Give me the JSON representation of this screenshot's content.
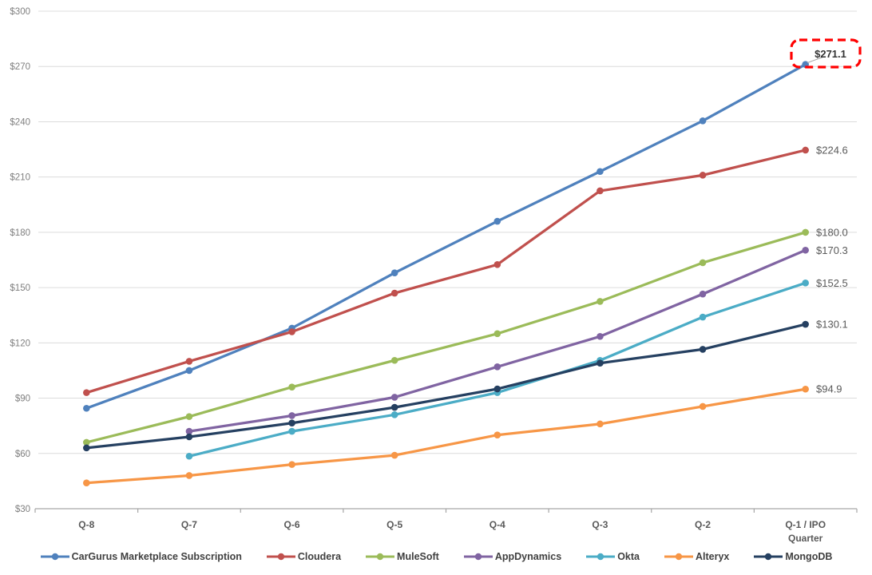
{
  "chart_data": {
    "type": "line",
    "title": "",
    "xlabel": "",
    "ylabel": "",
    "categories": [
      "Q-8",
      "Q-7",
      "Q-6",
      "Q-5",
      "Q-4",
      "Q-3",
      "Q-2",
      "Q-1 / IPO\nQuarter"
    ],
    "y_axis": {
      "min": 30,
      "max": 300,
      "step": 30,
      "tick_labels": [
        "$30",
        "$60",
        "$90",
        "$120",
        "$150",
        "$180",
        "$210",
        "$240",
        "$270",
        "$300"
      ]
    },
    "grid": "horizontal",
    "legend_position": "bottom",
    "series": [
      {
        "name": "CarGurus Marketplace Subscription",
        "color": "#4F81BD",
        "values": [
          84.5,
          105.0,
          128.0,
          158.0,
          186.0,
          213.0,
          240.5,
          271.1
        ],
        "end_label": "$271.1",
        "highlighted": true
      },
      {
        "name": "Cloudera",
        "color": "#C0504D",
        "values": [
          93.0,
          110.0,
          126.0,
          147.0,
          162.5,
          202.5,
          211.0,
          224.6
        ],
        "end_label": "$224.6",
        "highlighted": false
      },
      {
        "name": "MuleSoft",
        "color": "#9BBB59",
        "values": [
          66.0,
          80.0,
          96.0,
          110.5,
          125.0,
          142.5,
          163.5,
          180.0
        ],
        "end_label": "$180.0",
        "highlighted": false
      },
      {
        "name": "AppDynamics",
        "color": "#8064A2",
        "values": [
          null,
          72.0,
          80.5,
          90.5,
          107.0,
          123.5,
          146.5,
          170.3
        ],
        "end_label": "$170.3",
        "highlighted": false
      },
      {
        "name": "Okta",
        "color": "#4BACC6",
        "values": [
          null,
          58.5,
          72.0,
          81.0,
          93.0,
          110.5,
          134.0,
          152.5
        ],
        "end_label": "$152.5",
        "highlighted": false
      },
      {
        "name": "Alteryx",
        "color": "#F79646",
        "values": [
          44.0,
          48.0,
          54.0,
          59.0,
          70.0,
          76.0,
          85.5,
          94.9
        ],
        "end_label": "$94.9",
        "highlighted": false
      },
      {
        "name": "MongoDB",
        "color": "#254061",
        "values": [
          63.0,
          69.0,
          76.5,
          85.0,
          95.0,
          109.0,
          116.5,
          130.1
        ],
        "end_label": "$130.1",
        "highlighted": false
      }
    ],
    "annotation": {
      "text": "$271.1",
      "target_series": "CarGurus Marketplace Subscription",
      "box_style": "dashed",
      "box_color": "#FF0000"
    },
    "colors": {
      "gridline": "#DCDCDC",
      "axis_line": "#A6A6A6",
      "y_tick_text": "#7F7F7F",
      "x_tick_text": "#595959",
      "end_label_text": "#595959",
      "legend_text": "#404040"
    }
  },
  "legend": {
    "items": [
      {
        "label": "CarGurus Marketplace Subscription",
        "color": "#4F81BD"
      },
      {
        "label": "Cloudera",
        "color": "#C0504D"
      },
      {
        "label": "MuleSoft",
        "color": "#9BBB59"
      },
      {
        "label": "AppDynamics",
        "color": "#8064A2"
      },
      {
        "label": "Okta",
        "color": "#4BACC6"
      },
      {
        "label": "Alteryx",
        "color": "#F79646"
      },
      {
        "label": "MongoDB",
        "color": "#254061"
      }
    ]
  }
}
